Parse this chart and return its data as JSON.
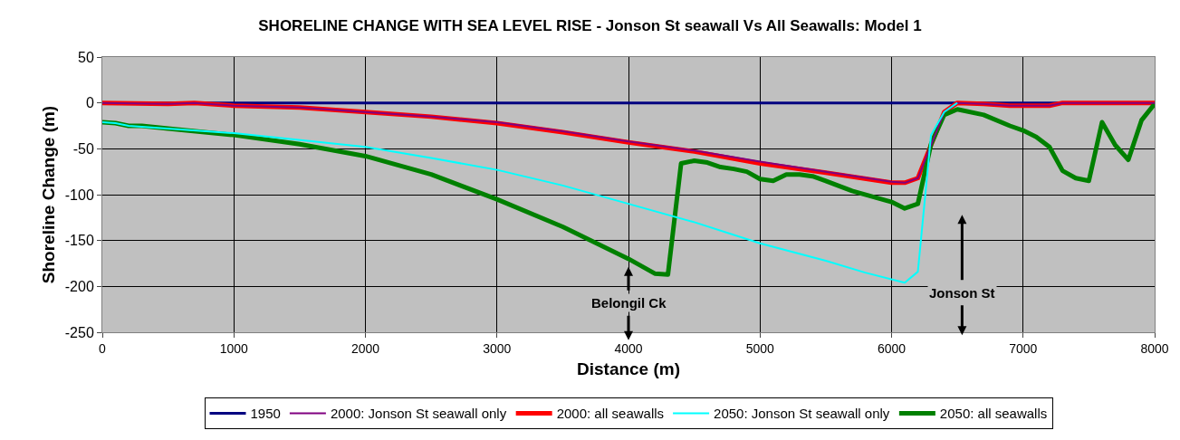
{
  "chart_data": {
    "type": "line",
    "title": "SHORELINE CHANGE WITH SEA LEVEL RISE - Jonson St seawall Vs All Seawalls: Model 1",
    "xlabel": "Distance (m)",
    "ylabel": "Shoreline Change (m)",
    "xlim": [
      0,
      8000
    ],
    "xticks": [
      0,
      1000,
      2000,
      3000,
      4000,
      5000,
      6000,
      7000,
      8000
    ],
    "ylim": [
      -250,
      50
    ],
    "yticks": [
      -250,
      -200,
      -150,
      -100,
      -50,
      0,
      50
    ],
    "grid": true,
    "legend": "bottom",
    "marker": "none",
    "line_style": "solid",
    "annotations": [
      "Belongil Ck",
      "Jonson St"
    ],
    "series": [
      {
        "name": "1950",
        "color": "#000080",
        "x": [
          0,
          8000
        ],
        "values": [
          0,
          0
        ]
      },
      {
        "name": "2000: Jonson St seawall only",
        "color": "#800080",
        "x": [
          0,
          500,
          700,
          1000,
          1500,
          2000,
          2500,
          3000,
          3500,
          4000,
          4500,
          5000,
          5500,
          6000,
          6100,
          6200,
          6400,
          6500,
          6700,
          6900,
          7200,
          7300,
          8000
        ],
        "values": [
          0,
          -1,
          0,
          -3,
          -5,
          -10,
          -15,
          -21,
          -31,
          -42,
          -52,
          -64,
          -75,
          -86,
          -87,
          -82,
          -10,
          0,
          -1,
          -3,
          -3,
          0,
          0
        ]
      },
      {
        "name": "2000: all seawalls",
        "color": "#ff0000",
        "x": [
          0,
          500,
          700,
          1000,
          1500,
          2000,
          2500,
          3000,
          3500,
          4000,
          4500,
          5000,
          5500,
          6000,
          6100,
          6200,
          6400,
          6500,
          6700,
          6900,
          7200,
          7300,
          8000
        ],
        "values": [
          0,
          -1,
          0,
          -3,
          -5,
          -10,
          -15,
          -22,
          -32,
          -43,
          -53,
          -66,
          -76,
          -87,
          -87,
          -82,
          -10,
          0,
          -1,
          -3,
          -3,
          0,
          0
        ]
      },
      {
        "name": "2050: Jonson St seawall only",
        "color": "#00ffff",
        "x": [
          0,
          100,
          200,
          1000,
          2000,
          2500,
          3000,
          3500,
          4000,
          4500,
          5000,
          5500,
          5800,
          6100,
          6200,
          6300,
          6400,
          6500
        ],
        "values": [
          -21,
          -22,
          -25,
          -33,
          -48,
          -60,
          -73,
          -90,
          -110,
          -130,
          -153,
          -172,
          -185,
          -196,
          -184,
          -35,
          -10,
          0
        ]
      },
      {
        "name": "2050: all seawalls",
        "color": "#008000",
        "x": [
          0,
          100,
          200,
          300,
          500,
          1000,
          1500,
          2000,
          2500,
          3000,
          3500,
          4000,
          4200,
          4300,
          4400,
          4500,
          4600,
          4700,
          4800,
          4900,
          5000,
          5100,
          5200,
          5300,
          5400,
          5500,
          5700,
          6000,
          6100,
          6200,
          6300,
          6400,
          6500,
          6700,
          6900,
          7000,
          7100,
          7200,
          7300,
          7400,
          7500,
          7600,
          7700,
          7800,
          7900,
          8000
        ],
        "values": [
          -21,
          -22,
          -25,
          -25,
          -28,
          -35,
          -45,
          -58,
          -78,
          -105,
          -135,
          -170,
          -186,
          -187,
          -66,
          -63,
          -65,
          -70,
          -72,
          -75,
          -83,
          -85,
          -78,
          -78,
          -80,
          -85,
          -96,
          -108,
          -115,
          -110,
          -45,
          -13,
          -7,
          -13,
          -25,
          -30,
          -37,
          -48,
          -74,
          -82,
          -85,
          -21,
          -46,
          -62,
          -19,
          -1
        ]
      }
    ]
  }
}
